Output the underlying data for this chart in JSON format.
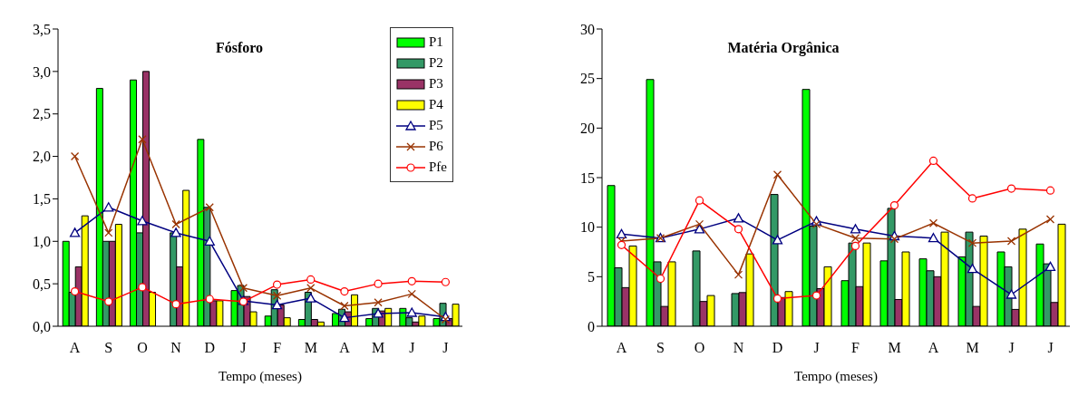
{
  "chart_data": [
    {
      "type": "bar",
      "title": "Fósforo",
      "xlabel": "Tempo (meses)",
      "categories": [
        "A",
        "S",
        "O",
        "N",
        "D",
        "J",
        "F",
        "M",
        "A",
        "M",
        "J",
        "J"
      ],
      "ylim": [
        0,
        3.5
      ],
      "yticks": [
        {
          "value": 0,
          "label": "0,0"
        },
        {
          "value": 0.5,
          "label": "0,5"
        },
        {
          "value": 1,
          "label": "1,0"
        },
        {
          "value": 1.5,
          "label": "1,5"
        },
        {
          "value": 2,
          "label": "2,0"
        },
        {
          "value": 2.5,
          "label": "2,5"
        },
        {
          "value": 3,
          "label": "3,0"
        },
        {
          "value": 3.5,
          "label": "3,5"
        }
      ],
      "legend": "top right",
      "series": [
        {
          "name": "P1",
          "color": "#00ff00",
          "values": [
            1.0,
            2.8,
            2.9,
            null,
            2.2,
            0.42,
            0.12,
            0.08,
            0.15,
            0.09,
            0.21,
            0.09
          ]
        },
        {
          "name": "P2",
          "color": "#339966",
          "values": [
            0.4,
            1.0,
            1.1,
            1.1,
            1.4,
            0.48,
            0.43,
            0.4,
            0.2,
            0.21,
            0.1,
            0.27
          ]
        },
        {
          "name": "P3",
          "color": "#993366",
          "values": [
            0.7,
            1.0,
            3.0,
            0.7,
            0.3,
            0.35,
            0.25,
            0.08,
            0.17,
            0.18,
            0.05,
            0.09
          ]
        },
        {
          "name": "P4",
          "color": "#ffff00",
          "values": [
            1.3,
            1.2,
            0.4,
            1.6,
            0.3,
            0.17,
            0.1,
            0.05,
            0.37,
            0.21,
            0.12,
            0.26
          ]
        },
        {
          "name": "P5",
          "type": "line",
          "marker": "triangle",
          "color": "#000080",
          "values": [
            1.1,
            1.4,
            1.24,
            1.1,
            1.0,
            0.3,
            0.25,
            0.33,
            0.1,
            0.15,
            0.16,
            0.11
          ]
        },
        {
          "name": "P6",
          "type": "line",
          "marker": "cross",
          "color": "#993300",
          "values": [
            2.0,
            1.1,
            2.2,
            1.2,
            1.4,
            0.45,
            0.36,
            0.45,
            0.24,
            0.28,
            0.38,
            0.08
          ]
        },
        {
          "name": "Pfe",
          "type": "line",
          "marker": "circle",
          "color": "#ff0000",
          "values": [
            0.41,
            0.29,
            0.46,
            0.26,
            0.32,
            0.29,
            0.49,
            0.55,
            0.41,
            0.5,
            0.53,
            0.52
          ]
        }
      ]
    },
    {
      "type": "bar",
      "title": "Matéria Orgânica",
      "xlabel": "Tempo (meses)",
      "categories": [
        "A",
        "S",
        "O",
        "N",
        "D",
        "J",
        "F",
        "M",
        "A",
        "M",
        "J",
        "J"
      ],
      "ylim": [
        0,
        30
      ],
      "yticks": [
        0,
        5,
        10,
        15,
        20,
        25,
        30
      ],
      "series": [
        {
          "color": "#00ff00",
          "values": [
            14.2,
            24.9,
            null,
            null,
            null,
            23.9,
            4.6,
            6.6,
            6.8,
            7.0,
            7.5,
            8.3
          ]
        },
        {
          "color": "#339966",
          "values": [
            5.9,
            6.5,
            7.6,
            3.3,
            13.3,
            10.1,
            8.4,
            11.9,
            5.6,
            9.5,
            6.0,
            6.3
          ]
        },
        {
          "color": "#993366",
          "values": [
            3.9,
            2.0,
            2.5,
            3.4,
            2.9,
            3.8,
            4.0,
            2.7,
            5.0,
            2.0,
            1.7,
            2.4
          ]
        },
        {
          "color": "#ffff00",
          "values": [
            8.1,
            6.5,
            3.1,
            7.3,
            3.5,
            6.0,
            8.4,
            7.5,
            9.5,
            9.1,
            9.8,
            10.3
          ]
        },
        {
          "type": "line",
          "marker": "triangle",
          "color": "#000080",
          "values": [
            9.3,
            8.9,
            9.8,
            10.9,
            8.7,
            10.6,
            9.8,
            9.1,
            8.9,
            5.8,
            3.2,
            6.0
          ]
        },
        {
          "type": "line",
          "marker": "cross",
          "color": "#993300",
          "values": [
            8.6,
            8.9,
            10.3,
            5.2,
            15.3,
            10.3,
            8.9,
            8.8,
            10.4,
            8.4,
            8.6,
            10.8
          ]
        },
        {
          "type": "line",
          "marker": "circle",
          "color": "#ff0000",
          "values": [
            8.2,
            4.8,
            12.7,
            9.8,
            2.8,
            3.1,
            8.1,
            12.2,
            16.7,
            12.9,
            13.9,
            13.7
          ]
        }
      ]
    }
  ]
}
